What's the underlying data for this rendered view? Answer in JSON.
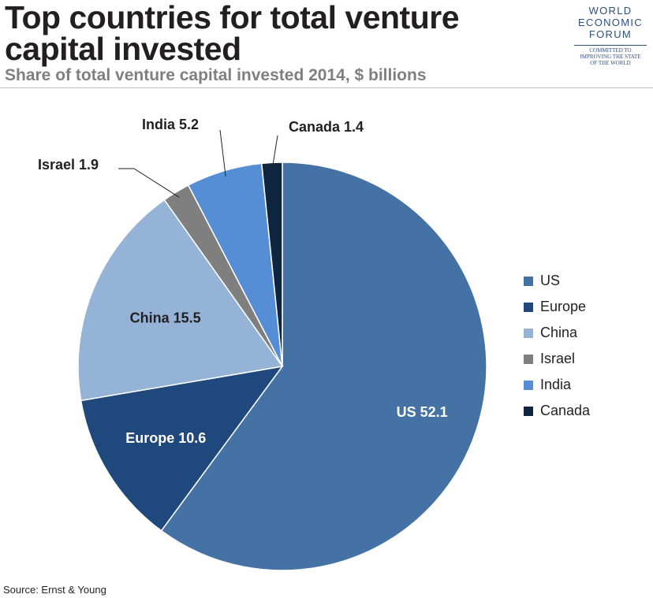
{
  "title": "Top countries for total venture capital invested",
  "subtitle": "Share of total venture capital invested 2014, $ billions",
  "source": "Source: Ernst & Young",
  "logo": {
    "words": [
      "WORLD",
      "ECONOMIC",
      "FORUM"
    ],
    "tagline": [
      "COMMITTED TO",
      "IMPROVING THE STATE",
      "OF THE WORLD"
    ]
  },
  "chart_data": {
    "type": "pie",
    "title": "Top countries for total venture capital invested",
    "subtitle": "Share of total venture capital invested 2014, $ billions",
    "legend_position": "right",
    "slices": [
      {
        "label": "US",
        "value": 52.1,
        "color": "#4472a4"
      },
      {
        "label": "Europe",
        "value": 10.6,
        "color": "#1f497d"
      },
      {
        "label": "China",
        "value": 15.5,
        "color": "#95b3d7"
      },
      {
        "label": "Israel",
        "value": 1.9,
        "color": "#7f7f7f"
      },
      {
        "label": "India",
        "value": 5.2,
        "color": "#558ed5"
      },
      {
        "label": "Canada",
        "value": 1.4,
        "color": "#0f243e"
      }
    ]
  }
}
